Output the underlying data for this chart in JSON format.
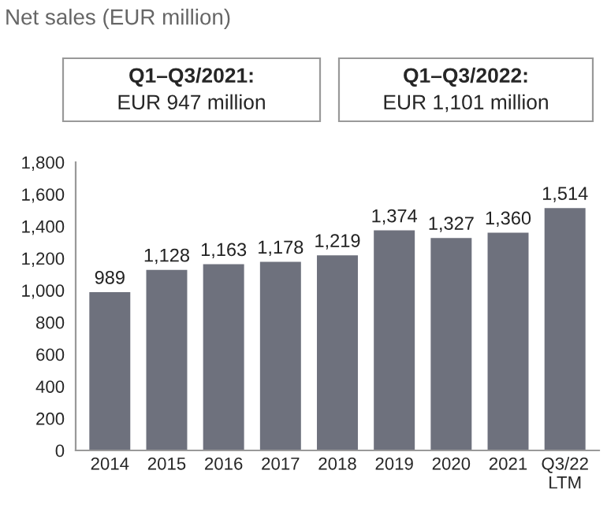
{
  "chart_data": {
    "type": "bar",
    "title": "Net sales (EUR million)",
    "annotations": [
      "Q1–Q3/2021:",
      "EUR 947 million",
      "Q1–Q3/2022:",
      "EUR 1,101 million"
    ],
    "categories": [
      "2014",
      "2015",
      "2016",
      "2017",
      "2018",
      "2019",
      "2020",
      "2021",
      "Q3/22\nLTM"
    ],
    "values": [
      989,
      1128,
      1163,
      1178,
      1219,
      1374,
      1327,
      1360,
      1514
    ],
    "value_labels": [
      "989",
      "1,128",
      "1,163",
      "1,178",
      "1,219",
      "1,374",
      "1,327",
      "1,360",
      "1,514"
    ],
    "color": "#6e717d",
    "ylim": [
      0,
      1800
    ],
    "yticks": [
      0,
      200,
      400,
      600,
      800,
      {
        "value": 1000,
        "label": "1,000"
      },
      {
        "value": 1200,
        "label": "1,200"
      },
      {
        "value": 1400,
        "label": "1,400"
      },
      {
        "value": 1600,
        "label": "1,600"
      },
      {
        "value": 1800,
        "label": "1,800"
      }
    ],
    "grid": false
  }
}
